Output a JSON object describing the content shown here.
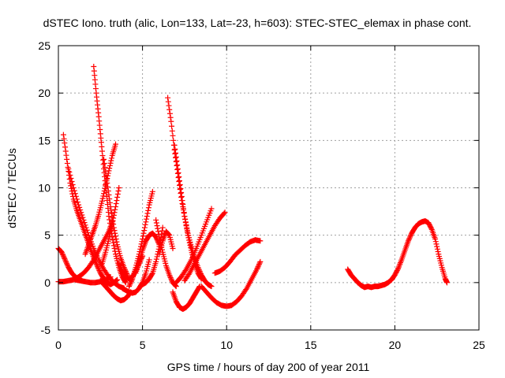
{
  "chart_data": {
    "type": "scatter",
    "title": "dSTEC Iono. truth (alic, Lon=133, Lat=-23, h=603): STEC-STEC_elemax in phase cont.",
    "xlabel": "GPS time / hours of day 200 of year 2011",
    "ylabel": "dSTEC  / TECUs",
    "xlim": [
      0,
      25
    ],
    "ylim": [
      -5,
      25
    ],
    "x_ticks": [
      "0",
      "5",
      "10",
      "15",
      "20",
      "25"
    ],
    "y_ticks": [
      "-5",
      "0",
      "5",
      "10",
      "15",
      "20",
      "25"
    ],
    "x_tick_values": [
      0,
      5,
      10,
      15,
      20,
      25
    ],
    "y_tick_values": [
      -5,
      0,
      5,
      10,
      15,
      20,
      25
    ],
    "grid": true,
    "marker": "+",
    "color": "#ff0000",
    "series": [
      {
        "x": [
          0.0,
          0.2,
          0.4,
          0.6,
          0.8,
          1.0,
          1.2,
          1.4
        ],
        "y": [
          3.6,
          3.2,
          2.4,
          1.6,
          1.0,
          0.6,
          0.4,
          0.2
        ]
      },
      {
        "x": [
          0.0,
          0.3,
          0.6,
          0.9,
          1.2,
          1.5,
          1.8,
          2.1,
          2.4,
          2.7,
          3.0,
          3.2
        ],
        "y": [
          0.1,
          0.1,
          0.2,
          0.3,
          0.6,
          1.0,
          1.6,
          2.4,
          3.4,
          4.4,
          5.4,
          6.4
        ]
      },
      {
        "x": [
          0.3,
          0.5,
          0.7,
          0.9,
          1.1,
          1.3,
          1.5,
          1.7,
          1.9,
          2.1,
          2.3,
          2.5,
          2.7,
          2.9,
          3.1,
          3.3,
          3.5
        ],
        "y": [
          15.6,
          13.0,
          10.5,
          8.8,
          7.6,
          6.6,
          5.6,
          4.6,
          3.6,
          2.6,
          1.8,
          1.0,
          0.4,
          0.0,
          -0.2,
          0.0,
          0.3
        ]
      },
      {
        "x": [
          0.6,
          0.9,
          1.2,
          1.5,
          1.8,
          2.1,
          2.4,
          2.7,
          3.0,
          3.3,
          3.6,
          3.9
        ],
        "y": [
          12.0,
          10.0,
          8.2,
          6.6,
          5.0,
          3.6,
          2.4,
          1.4,
          0.6,
          0.0,
          -0.4,
          -0.6
        ]
      },
      {
        "x": [
          1.0,
          1.3,
          1.6,
          1.9,
          2.2,
          2.5,
          2.8,
          3.1
        ],
        "y": [
          0.3,
          0.2,
          0.1,
          0.0,
          0.0,
          0.1,
          0.3,
          0.6
        ]
      },
      {
        "x": [
          1.6,
          1.8,
          2.0,
          2.2,
          2.4,
          2.6,
          2.8,
          3.0,
          3.2,
          3.4
        ],
        "y": [
          3.0,
          4.0,
          5.0,
          6.0,
          7.2,
          8.6,
          10.2,
          11.8,
          13.4,
          14.6
        ]
      },
      {
        "x": [
          2.1,
          2.25,
          2.4,
          2.55,
          2.7,
          2.85,
          3.0,
          3.2,
          3.4,
          3.6,
          3.8,
          4.0
        ],
        "y": [
          22.8,
          20.0,
          17.5,
          14.8,
          12.0,
          9.5,
          7.0,
          4.8,
          3.0,
          1.6,
          0.6,
          0.0
        ]
      },
      {
        "x": [
          2.7,
          2.9,
          3.1,
          3.3,
          3.5,
          3.7,
          3.9,
          4.1
        ],
        "y": [
          13.0,
          10.5,
          8.0,
          5.8,
          4.0,
          2.6,
          1.6,
          0.8
        ]
      },
      {
        "x": [
          2.5,
          2.7,
          2.9,
          3.1,
          3.3,
          3.5,
          3.7,
          3.9,
          4.1,
          4.3
        ],
        "y": [
          0.2,
          -0.2,
          -0.6,
          -1.0,
          -1.4,
          -1.7,
          -1.9,
          -1.8,
          -1.5,
          -1.0
        ]
      },
      {
        "x": [
          2.6,
          2.8,
          3.0,
          3.2,
          3.4,
          3.6
        ],
        "y": [
          2.0,
          3.2,
          4.6,
          6.2,
          8.0,
          10.0
        ]
      },
      {
        "x": [
          3.6,
          3.8,
          4.0,
          4.2,
          4.4,
          4.6,
          4.8,
          5.0
        ],
        "y": [
          2.0,
          1.2,
          0.6,
          0.4,
          0.6,
          1.2,
          2.0,
          2.8
        ]
      },
      {
        "x": [
          3.8,
          4.0,
          4.2,
          4.4,
          4.6,
          4.8,
          5.0,
          5.2,
          5.4
        ],
        "y": [
          -0.6,
          -0.8,
          -1.0,
          -1.1,
          -1.0,
          -0.6,
          0.0,
          1.0,
          2.4
        ]
      },
      {
        "x": [
          4.2,
          4.4,
          4.6,
          4.8,
          5.0,
          5.2,
          5.4,
          5.6
        ],
        "y": [
          -0.4,
          0.4,
          1.6,
          3.0,
          4.6,
          6.4,
          8.2,
          9.6
        ]
      },
      {
        "x": [
          4.6,
          4.8,
          5.0,
          5.2,
          5.4,
          5.6,
          5.8,
          6.0
        ],
        "y": [
          1.0,
          2.2,
          3.4,
          4.4,
          5.0,
          5.2,
          4.8,
          4.0
        ]
      },
      {
        "x": [
          5.0,
          5.2,
          5.4,
          5.6,
          5.8,
          6.0,
          6.2
        ],
        "y": [
          -0.2,
          0.0,
          0.4,
          1.0,
          2.2,
          3.8,
          5.8
        ]
      },
      {
        "x": [
          5.8,
          6.0,
          6.2,
          6.4,
          6.6,
          6.8,
          7.0
        ],
        "y": [
          6.6,
          4.8,
          3.2,
          1.8,
          0.8,
          0.0,
          -0.4
        ]
      },
      {
        "x": [
          6.0,
          6.2,
          6.4,
          6.6,
          6.8
        ],
        "y": [
          3.0,
          4.4,
          5.4,
          5.0,
          3.6
        ]
      },
      {
        "x": [
          6.5,
          6.7,
          6.9,
          7.1,
          7.3,
          7.5,
          7.7,
          7.9,
          8.1,
          8.3,
          8.5,
          8.7,
          8.9,
          9.1
        ],
        "y": [
          19.5,
          17.0,
          14.0,
          11.5,
          9.0,
          7.0,
          5.2,
          3.8,
          2.6,
          1.6,
          0.8,
          0.2,
          -0.2,
          -0.4
        ]
      },
      {
        "x": [
          6.9,
          7.1,
          7.3,
          7.5,
          7.7,
          7.9,
          8.1,
          8.3,
          8.5
        ],
        "y": [
          14.5,
          12.0,
          9.5,
          7.0,
          5.0,
          3.4,
          2.0,
          1.0,
          0.4
        ]
      },
      {
        "x": [
          6.8,
          7.0,
          7.2,
          7.4,
          7.6,
          7.8,
          8.0,
          8.2,
          8.4
        ],
        "y": [
          -1.0,
          -2.0,
          -2.6,
          -2.8,
          -2.6,
          -2.2,
          -1.6,
          -1.0,
          -0.4
        ]
      },
      {
        "x": [
          7.5,
          7.8,
          8.1,
          8.4,
          8.7,
          9.0,
          9.3,
          9.6,
          9.9
        ],
        "y": [
          0.2,
          1.0,
          2.0,
          3.0,
          4.0,
          5.0,
          6.0,
          6.8,
          7.4
        ]
      },
      {
        "x": [
          7.0,
          7.3,
          7.6,
          7.9,
          8.2,
          8.5,
          8.8,
          9.1
        ],
        "y": [
          0.0,
          0.6,
          1.4,
          2.4,
          3.6,
          5.0,
          6.4,
          7.8
        ]
      },
      {
        "x": [
          8.5,
          8.8,
          9.1,
          9.4,
          9.7,
          10.0,
          10.3,
          10.6,
          10.9,
          11.2,
          11.5,
          11.8,
          12.0
        ],
        "y": [
          -0.4,
          -1.0,
          -1.6,
          -2.1,
          -2.4,
          -2.5,
          -2.4,
          -2.0,
          -1.4,
          -0.6,
          0.4,
          1.4,
          2.2
        ]
      },
      {
        "x": [
          9.3,
          9.6,
          9.9,
          10.2,
          10.5,
          10.8,
          11.1,
          11.4,
          11.7,
          12.0
        ],
        "y": [
          1.0,
          1.2,
          1.6,
          2.2,
          2.9,
          3.4,
          3.9,
          4.3,
          4.5,
          4.4
        ]
      },
      {
        "x": [
          17.2,
          17.4,
          17.6,
          17.8,
          18.0,
          18.2,
          18.4,
          18.6,
          18.8,
          19.0,
          19.2,
          19.4,
          19.6,
          19.8
        ],
        "y": [
          1.4,
          0.8,
          0.4,
          0.0,
          -0.3,
          -0.5,
          -0.4,
          -0.5,
          -0.4,
          -0.4,
          -0.3,
          -0.2,
          0.0,
          0.3
        ]
      },
      {
        "x": [
          19.8,
          20.0,
          20.2,
          20.4,
          20.6,
          20.8,
          21.0,
          21.2,
          21.4,
          21.6,
          21.8,
          22.0,
          22.2,
          22.4,
          22.6,
          22.8,
          23.0,
          23.1
        ],
        "y": [
          0.3,
          0.8,
          1.5,
          2.4,
          3.4,
          4.4,
          5.2,
          5.8,
          6.2,
          6.4,
          6.5,
          6.3,
          5.6,
          4.6,
          3.0,
          1.6,
          0.4,
          0.0
        ]
      }
    ]
  }
}
